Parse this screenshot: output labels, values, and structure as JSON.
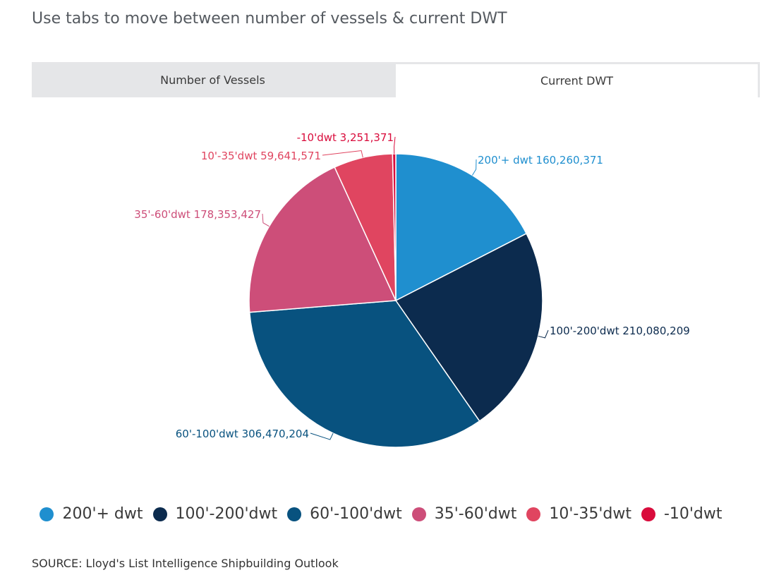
{
  "intro_text": "Use tabs to move between number of vessels & current DWT",
  "tabs": [
    {
      "label": "Number of Vessels",
      "active": false
    },
    {
      "label": "Current DWT",
      "active": true
    }
  ],
  "source": "SOURCE: Lloyd's List Intelligence Shipbuilding Outlook",
  "chart_data": {
    "type": "pie",
    "title": "",
    "slices": [
      {
        "label": "200'+ dwt",
        "value": 160260371,
        "display": "160,260,371",
        "color": "#1f8fcf"
      },
      {
        "label": "100'-200'dwt",
        "value": 210080209,
        "display": "210,080,209",
        "color": "#0c2b4e"
      },
      {
        "label": "60'-100'dwt",
        "value": 306470204,
        "display": "306,470,204",
        "color": "#08527f"
      },
      {
        "label": "35'-60'dwt",
        "value": 178353427,
        "display": "178,353,427",
        "color": "#cd4e79"
      },
      {
        "label": "10'-35'dwt",
        "value": 59641571,
        "display": "59,641,571",
        "color": "#e04560"
      },
      {
        "label": "-10'dwt",
        "value": 3251371,
        "display": "3,251,371",
        "color": "#d90c3c"
      }
    ],
    "legend_position": "bottom"
  }
}
